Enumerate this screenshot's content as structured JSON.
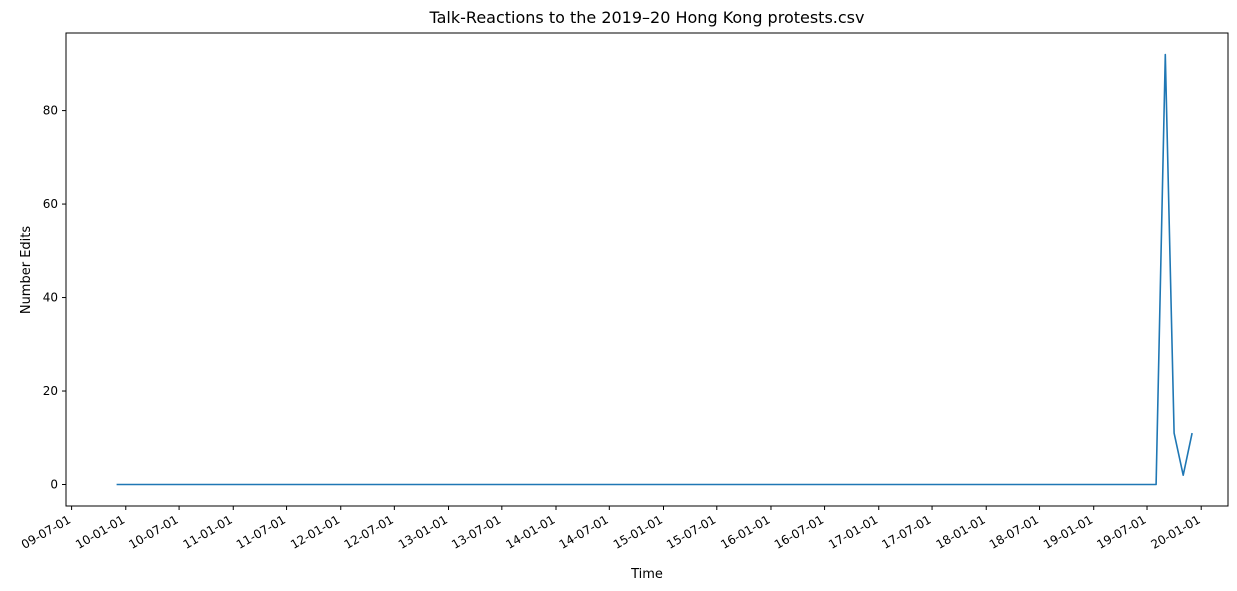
{
  "chart_data": {
    "type": "line",
    "title": "Talk-Reactions to the 2019–20 Hong Kong protests.csv",
    "xlabel": "Time",
    "ylabel": "Number Edits",
    "x_tick_labels": [
      "09-07-01",
      "10-01-01",
      "10-07-01",
      "11-01-01",
      "11-07-01",
      "12-01-01",
      "12-07-01",
      "13-01-01",
      "13-07-01",
      "14-01-01",
      "14-07-01",
      "15-01-01",
      "15-07-01",
      "16-01-01",
      "16-07-01",
      "17-01-01",
      "17-07-01",
      "18-01-01",
      "18-07-01",
      "19-01-01",
      "19-07-01",
      "20-01-01"
    ],
    "y_ticks": [
      0,
      20,
      40,
      60,
      80
    ],
    "ylim": [
      -4.6,
      96.6
    ],
    "xlim": [
      "2009-06-12",
      "2020-04-01"
    ],
    "grid": false,
    "legend": "none",
    "series": [
      {
        "color": "#1f77b4",
        "points": [
          {
            "x": "2009-12-01",
            "y": 0
          },
          {
            "x": "2019-08-01",
            "y": 0
          },
          {
            "x": "2019-09-01",
            "y": 92
          },
          {
            "x": "2019-10-01",
            "y": 11
          },
          {
            "x": "2019-11-01",
            "y": 2
          },
          {
            "x": "2019-12-01",
            "y": 11
          }
        ]
      }
    ]
  }
}
